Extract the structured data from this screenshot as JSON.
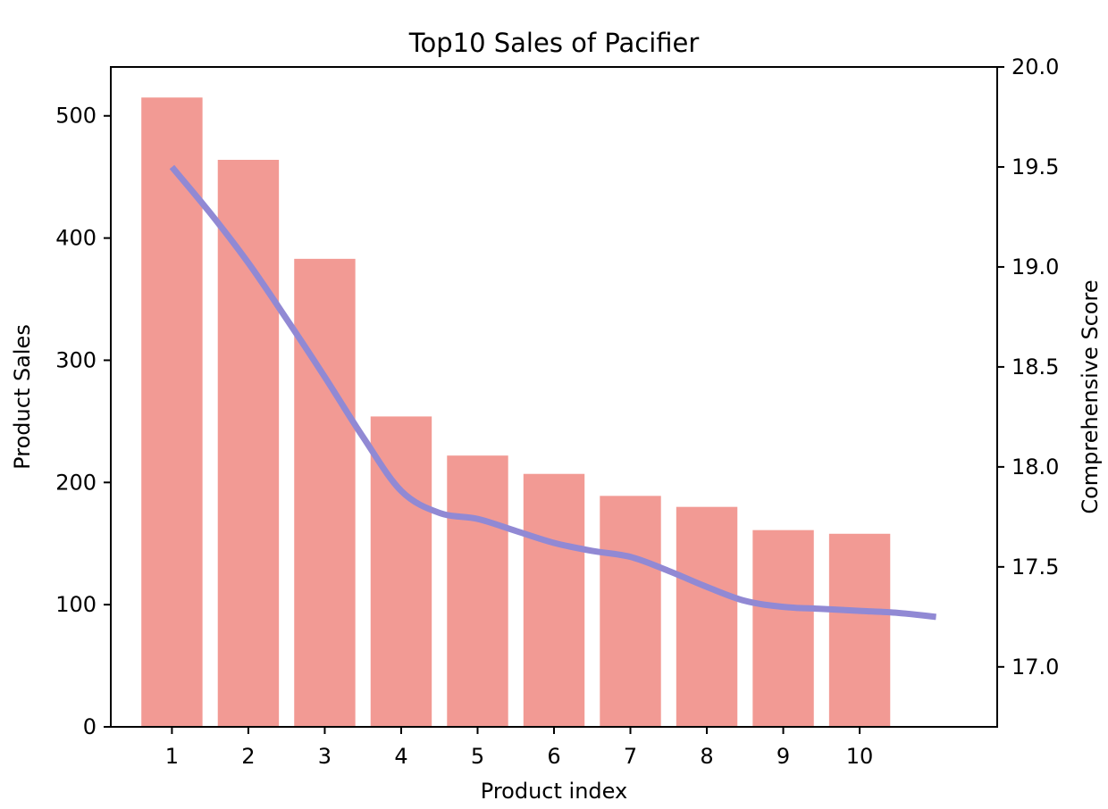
{
  "chart_data": {
    "type": "bar",
    "title": "Top10 Sales of Pacifier",
    "xlabel": "Product index",
    "ylabel": "Product Sales",
    "y2label": "Comprehensive Score",
    "categories": [
      "1",
      "2",
      "3",
      "4",
      "5",
      "6",
      "7",
      "8",
      "9",
      "10"
    ],
    "ylim": [
      0,
      540
    ],
    "yticks": [
      0,
      100,
      200,
      300,
      400,
      500
    ],
    "y2lim": [
      16.7,
      20.0
    ],
    "y2ticks": [
      "17.0",
      "17.5",
      "18.0",
      "18.5",
      "19.0",
      "19.5",
      "20.0"
    ],
    "xlim": [
      0.2,
      11.8
    ],
    "bar_color": "#f29a94",
    "line_color": "#9189d4",
    "series": [
      {
        "name": "Product Sales",
        "axis": "left",
        "kind": "bar",
        "values": [
          515,
          464,
          383,
          254,
          222,
          207,
          189,
          180,
          161,
          158
        ]
      },
      {
        "name": "Comprehensive Score",
        "axis": "right",
        "kind": "line",
        "x": [
          1,
          1.5,
          2,
          2.5,
          3,
          3.5,
          4,
          4.5,
          5,
          5.5,
          6,
          6.5,
          7,
          7.5,
          8,
          8.5,
          9,
          9.5,
          10,
          10.5,
          11
        ],
        "values": [
          19.5,
          19.27,
          19.02,
          18.74,
          18.45,
          18.15,
          17.88,
          17.77,
          17.74,
          17.68,
          17.62,
          17.58,
          17.55,
          17.48,
          17.4,
          17.33,
          17.3,
          17.29,
          17.28,
          17.27,
          17.25
        ]
      }
    ]
  }
}
